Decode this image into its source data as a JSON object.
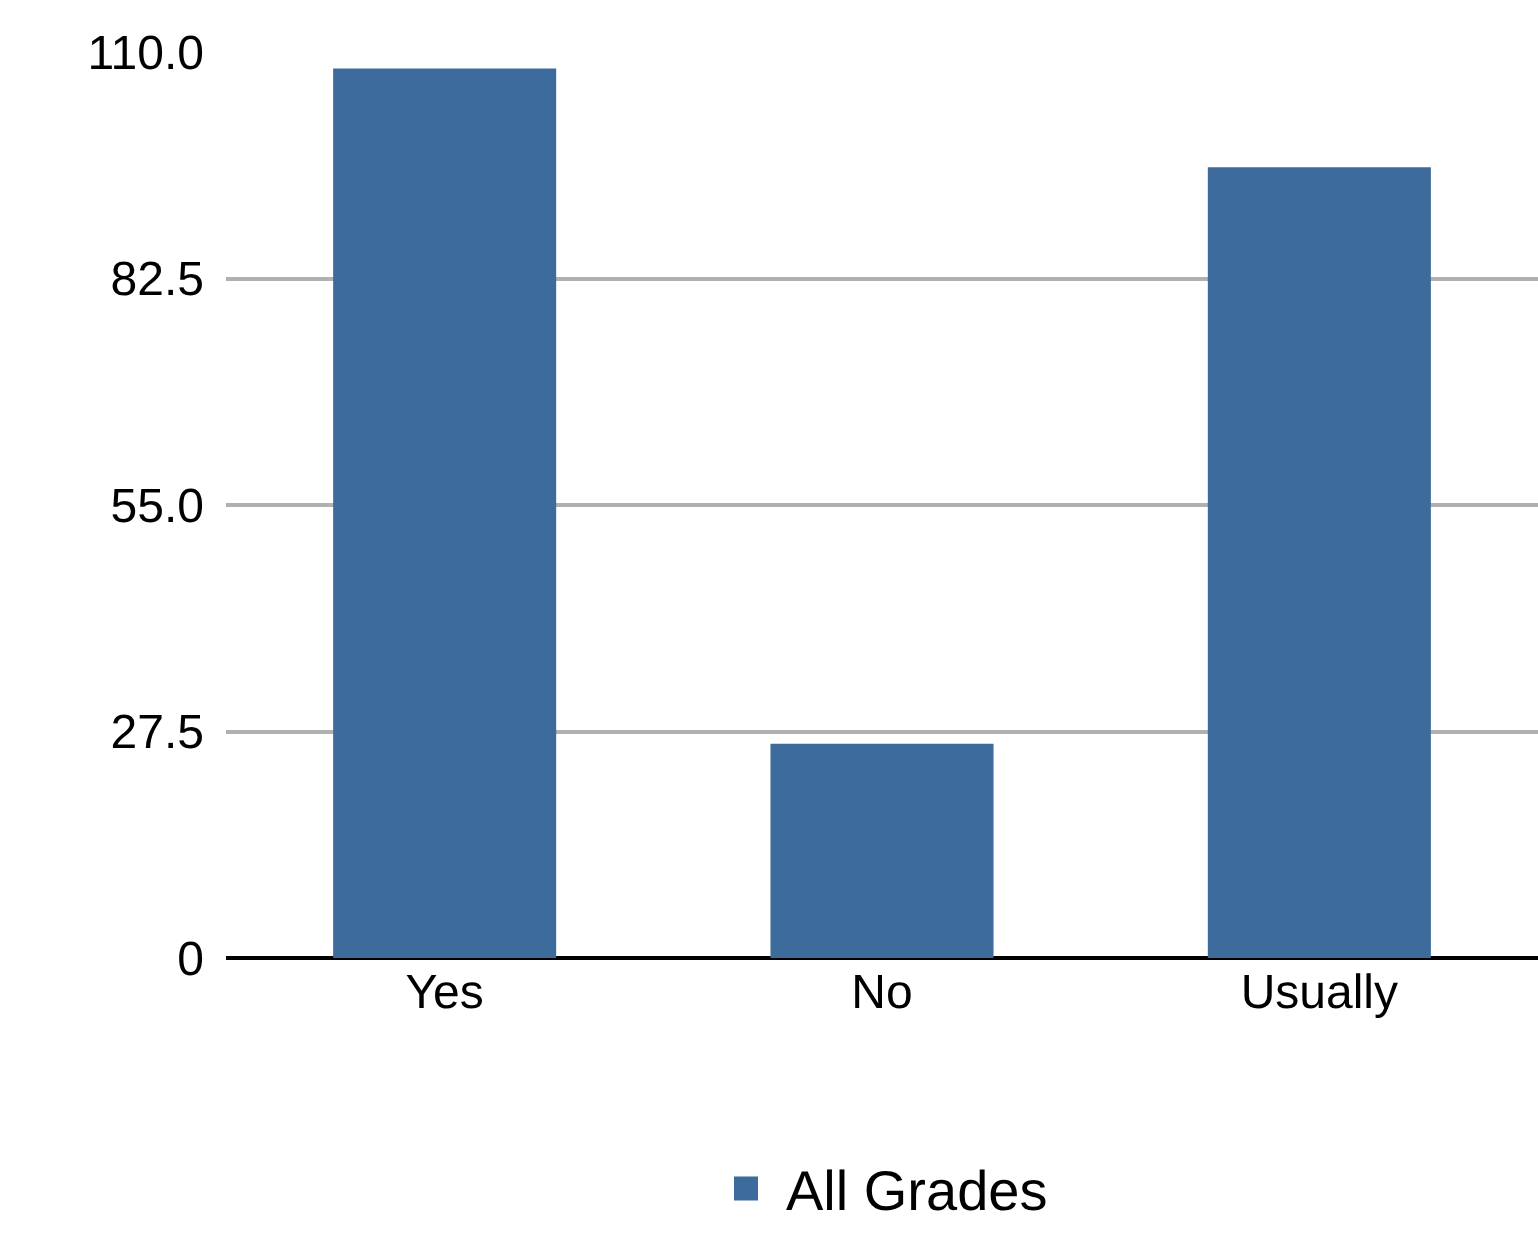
{
  "chart_data": {
    "type": "bar",
    "categories": [
      "Yes",
      "No",
      "Usually"
    ],
    "series": [
      {
        "name": "All Grades",
        "color": "#3d6b9c",
        "values": [
          108,
          26,
          96
        ]
      }
    ],
    "ylim": [
      0,
      110
    ],
    "yticks": [
      {
        "value": 0,
        "label": "0"
      },
      {
        "value": 27.5,
        "label": "27.5"
      },
      {
        "value": 55,
        "label": "55.0"
      },
      {
        "value": 82.5,
        "label": "82.5"
      },
      {
        "value": 110,
        "label": "110.0"
      }
    ],
    "grid": "y",
    "legend": "bottom"
  }
}
